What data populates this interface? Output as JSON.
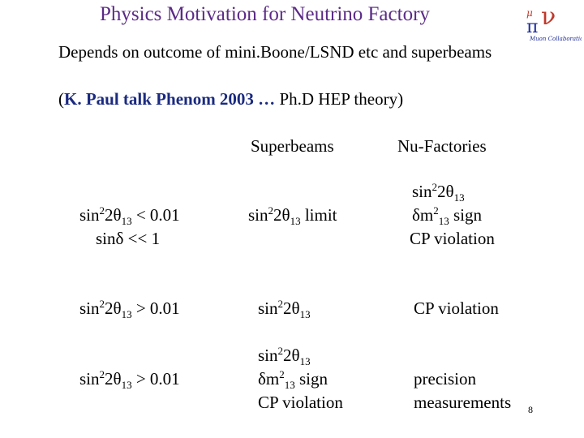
{
  "header": {
    "title": "Physics Motivation for Neutrino Factory",
    "logo_caption": "Muon Collaboration",
    "logo_letters": [
      "ν",
      "μ",
      "π"
    ]
  },
  "intro": {
    "line1": "Depends on outcome of mini.Boone/LSND etc and superbeams",
    "line2_open": "(",
    "line2_bold": "K. Paul talk Phenom 2003 …",
    "line2_rest": " Ph.D HEP theory)"
  },
  "table": {
    "headers": {
      "superbeams": "Superbeams",
      "nufactories": "Nu-Factories"
    },
    "row1": {
      "cond1": {
        "a": "sin",
        "sup": "2",
        "b": "2θ",
        "sub": "13",
        "c": " < 0.01"
      },
      "cond2": "sinδ << 1",
      "superbeams": {
        "a": "sin",
        "sup": "2",
        "b": "2θ",
        "sub": "13",
        "c": " limit"
      },
      "nufact": {
        "l1": {
          "a": "sin",
          "sup": "2",
          "b": "2θ",
          "sub": "13"
        },
        "l2": {
          "a": "δm",
          "sup": "2",
          "sub": "13",
          "c": " sign"
        },
        "l3": "CP violation"
      }
    },
    "row2": {
      "cond": {
        "a": "sin",
        "sup": "2",
        "b": "2θ",
        "sub": "13",
        "c": " > 0.01"
      },
      "superbeams": {
        "a": "sin",
        "sup": "2",
        "b": "2θ",
        "sub": "13"
      },
      "nufact": "CP violation"
    },
    "row3": {
      "cond": {
        "a": "sin",
        "sup": "2",
        "b": "2θ",
        "sub": "13",
        "c": " > 0.01"
      },
      "superbeams": {
        "l1": {
          "a": "sin",
          "sup": "2",
          "b": "2θ",
          "sub": "13"
        },
        "l2": {
          "a": "δm",
          "sup": "2",
          "sub": "13",
          "c": " sign"
        },
        "l3": "CP violation"
      },
      "nufact": {
        "l1": "precision",
        "l2": "measurements"
      }
    }
  },
  "page_number": "8"
}
